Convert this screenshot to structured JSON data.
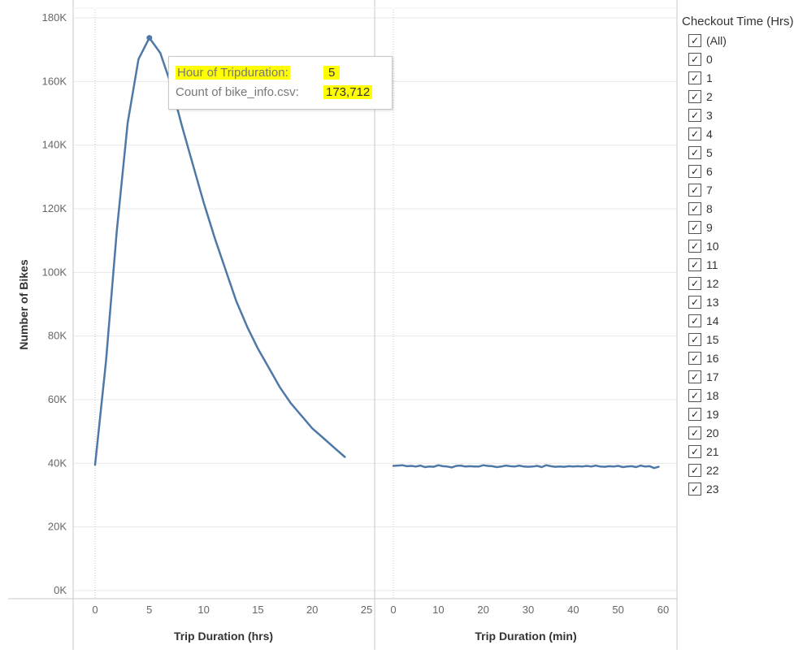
{
  "chart_data": [
    {
      "type": "line",
      "title": "",
      "xlabel": "Trip Duration (hrs)",
      "ylabel": "Number of Bikes",
      "xlim": [
        -2,
        25
      ],
      "ylim": [
        0,
        180000
      ],
      "grid": true,
      "x_ticks": [
        0,
        5,
        10,
        15,
        20,
        25
      ],
      "y_ticks": [
        "0K",
        "20K",
        "40K",
        "60K",
        "80K",
        "100K",
        "120K",
        "140K",
        "160K",
        "180K"
      ],
      "series": [
        {
          "x": [
            0,
            1,
            2,
            3,
            4,
            5,
            6,
            7,
            8,
            9,
            10,
            11,
            12,
            13,
            14,
            15,
            16,
            17,
            18,
            19,
            20,
            21,
            22,
            23
          ],
          "values": [
            39500,
            72000,
            113000,
            147000,
            167000,
            173712,
            169000,
            159000,
            146000,
            134000,
            122000,
            111000,
            101000,
            91000,
            83000,
            76000,
            70000,
            64000,
            59000,
            55000,
            51000,
            48000,
            45000,
            42000
          ]
        }
      ],
      "highlight": {
        "x": 5,
        "value": 173712
      }
    },
    {
      "type": "line",
      "title": "",
      "xlabel": "Trip Duration (min)",
      "ylabel": "",
      "xlim": [
        -2,
        62
      ],
      "ylim": [
        0,
        180000
      ],
      "grid": true,
      "x_ticks": [
        0,
        10,
        20,
        30,
        40,
        50,
        60
      ],
      "series": [
        {
          "x": [
            0,
            1,
            2,
            3,
            4,
            5,
            6,
            7,
            8,
            9,
            10,
            11,
            12,
            13,
            14,
            15,
            16,
            17,
            18,
            19,
            20,
            21,
            22,
            23,
            24,
            25,
            26,
            27,
            28,
            29,
            30,
            31,
            32,
            33,
            34,
            35,
            36,
            37,
            38,
            39,
            40,
            41,
            42,
            43,
            44,
            45,
            46,
            47,
            48,
            49,
            50,
            51,
            52,
            53,
            54,
            55,
            56,
            57,
            58,
            59
          ],
          "values": [
            39200,
            39300,
            39400,
            39100,
            39200,
            39000,
            39300,
            38800,
            39000,
            38900,
            39400,
            39100,
            39000,
            38700,
            39200,
            39300,
            39000,
            39100,
            39000,
            39000,
            39400,
            39200,
            39100,
            38800,
            39000,
            39300,
            39100,
            39000,
            39300,
            39000,
            38900,
            39000,
            39200,
            38800,
            39400,
            39100,
            38900,
            39000,
            38900,
            39100,
            39000,
            39100,
            39000,
            39200,
            39000,
            39300,
            39000,
            38900,
            39100,
            39000,
            39200,
            38800,
            39000,
            39100,
            38800,
            39300,
            39000,
            39100,
            38500,
            38900
          ]
        }
      ]
    }
  ],
  "tooltip": {
    "label1": "Hour of Tripduration:",
    "value1": "5",
    "label2": "Count of bike_info.csv:",
    "value2": "173,712"
  },
  "legend": {
    "title": "Checkout Time (Hrs)",
    "items": [
      "(All)",
      "0",
      "1",
      "2",
      "3",
      "4",
      "5",
      "6",
      "7",
      "8",
      "9",
      "10",
      "11",
      "12",
      "13",
      "14",
      "15",
      "16",
      "17",
      "18",
      "19",
      "20",
      "21",
      "22",
      "23"
    ],
    "check_glyph": "✓"
  },
  "colors": {
    "line": "#4e79a7",
    "highlight": "#ffff00",
    "grid": "#e8e8e8",
    "axis": "#c8c8c8"
  }
}
